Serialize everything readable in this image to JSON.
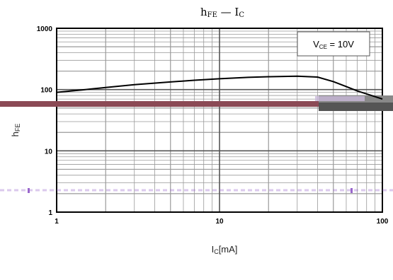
{
  "chart_data": {
    "type": "line",
    "title": "hFE — IC",
    "xlabel": "IC[mA]",
    "ylabel": "hFE",
    "xscale": "log",
    "yscale": "log",
    "xlim": [
      1,
      100
    ],
    "ylim": [
      1,
      1000
    ],
    "grid": true,
    "annotation": "VCE = 10V",
    "x_ticks": [
      "1",
      "10",
      "100"
    ],
    "y_ticks": [
      "1",
      "10",
      "100",
      "1000"
    ],
    "series": [
      {
        "name": "",
        "color": "#000000",
        "x": [
          1,
          1.5,
          2,
          3,
          5,
          7,
          10,
          15,
          20,
          30,
          40,
          50,
          60,
          70,
          80,
          100
        ],
        "y": [
          90,
          100,
          108,
          120,
          133,
          142,
          150,
          158,
          162,
          165,
          160,
          135,
          112,
          95,
          85,
          70
        ]
      }
    ]
  },
  "artifacts": {
    "band_color": "#8b4a55",
    "band_tail_color": "#888888",
    "dash_color": "#9966cc"
  }
}
